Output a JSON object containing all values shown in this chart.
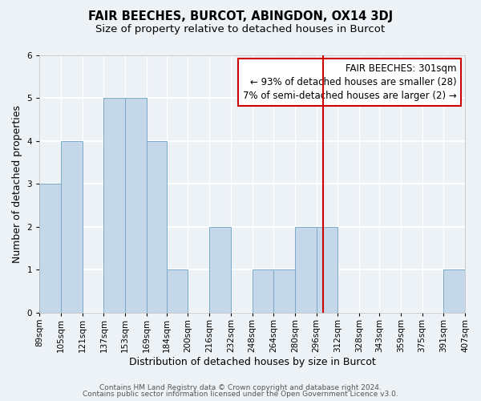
{
  "title": "FAIR BEECHES, BURCOT, ABINGDON, OX14 3DJ",
  "subtitle": "Size of property relative to detached houses in Burcot",
  "xlabel": "Distribution of detached houses by size in Burcot",
  "ylabel": "Number of detached properties",
  "bin_edges": [
    89,
    105,
    121,
    137,
    153,
    169,
    184,
    200,
    216,
    232,
    248,
    264,
    280,
    296,
    312,
    328,
    343,
    359,
    375,
    391,
    407
  ],
  "bar_heights": [
    3,
    4,
    0,
    5,
    5,
    4,
    1,
    0,
    2,
    0,
    1,
    1,
    2,
    2,
    0,
    0,
    0,
    0,
    0,
    1
  ],
  "bar_color": "#c5d8ea",
  "bar_edgecolor": "#7aaac8",
  "background_color": "#edf2f7",
  "grid_color": "#ffffff",
  "vline_x": 301,
  "vline_color": "#cc0000",
  "annotation_line1": "FAIR BEECHES: 301sqm",
  "annotation_line2": "← 93% of detached houses are smaller (28)",
  "annotation_line3": "7% of semi-detached houses are larger (2) →",
  "annotation_box_facecolor": "#ffffff",
  "annotation_box_edgecolor": "#cc0000",
  "ylim_max": 6,
  "yticks": [
    0,
    1,
    2,
    3,
    4,
    5,
    6
  ],
  "footnote1": "Contains HM Land Registry data © Crown copyright and database right 2024.",
  "footnote2": "Contains public sector information licensed under the Open Government Licence v3.0.",
  "title_fontsize": 10.5,
  "subtitle_fontsize": 9.5,
  "xlabel_fontsize": 9,
  "ylabel_fontsize": 9,
  "tick_fontsize": 7.5,
  "annot_fontsize": 8.5,
  "footnote_fontsize": 6.5
}
